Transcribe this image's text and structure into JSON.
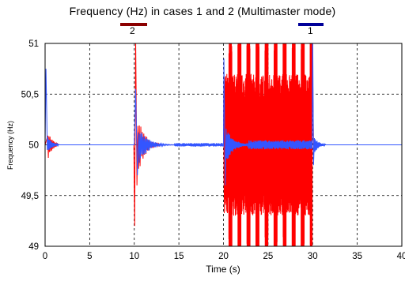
{
  "chart_data": {
    "type": "line",
    "title": "Frequency (Hz) in cases 1 and 2 (Multimaster mode)",
    "xlabel": "Time (s)",
    "ylabel": "Frequency (Hz)",
    "xlim": [
      0,
      40
    ],
    "ylim": [
      49,
      51
    ],
    "xticks": [
      "0",
      "5",
      "10",
      "15",
      "20",
      "25",
      "30",
      "35",
      "40"
    ],
    "yticks": [
      "51",
      "50,5",
      "50",
      "49,5",
      "49"
    ],
    "grid": true,
    "legend_placement": "top",
    "series": [
      {
        "name": "2",
        "color": "#ff0000",
        "legend_color": "#8b0000",
        "description_points": [
          [
            0,
            50
          ],
          [
            0.5,
            49.85
          ],
          [
            1,
            50
          ],
          [
            10,
            50
          ],
          [
            10.1,
            49.2
          ],
          [
            10.2,
            51
          ],
          [
            10.5,
            49.6
          ],
          [
            11,
            50.15
          ],
          [
            13,
            50
          ],
          [
            20,
            50
          ],
          [
            20.2,
            49
          ],
          [
            20.4,
            51
          ],
          [
            30,
            51
          ],
          [
            30.1,
            50
          ]
        ]
      },
      {
        "name": "1",
        "color": "#3355ff",
        "legend_color": "#000099",
        "description_points": [
          [
            0,
            50
          ],
          [
            0.2,
            50.7
          ],
          [
            0.5,
            49.9
          ],
          [
            1,
            50
          ],
          [
            10,
            50
          ],
          [
            10.2,
            50.6
          ],
          [
            10.6,
            49.7
          ],
          [
            12,
            50
          ],
          [
            20,
            50
          ],
          [
            20.2,
            50.8
          ],
          [
            20.6,
            49.7
          ],
          [
            22,
            50
          ],
          [
            29.9,
            50
          ],
          [
            30,
            51
          ],
          [
            30.4,
            49.9
          ],
          [
            31,
            50
          ],
          [
            40,
            50
          ]
        ]
      }
    ]
  }
}
